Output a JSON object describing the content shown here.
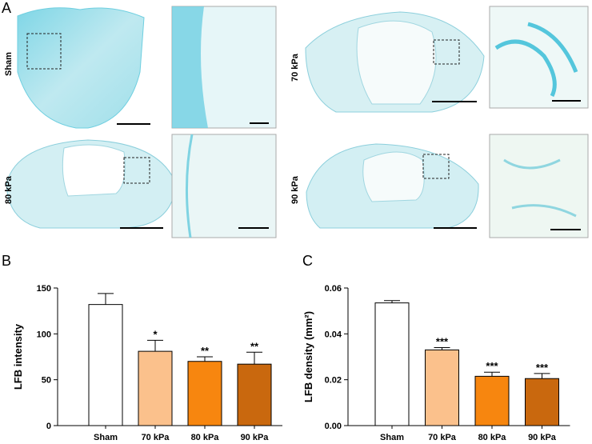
{
  "panel_labels": [
    "A",
    "B",
    "C"
  ],
  "images": [
    {
      "label": "Sham"
    },
    {
      "label": "70 kPa"
    },
    {
      "label": "80 kPa"
    },
    {
      "label": "90 kPa"
    }
  ],
  "chart_data": [
    {
      "type": "bar",
      "ylabel": "LFB intensity",
      "categories": [
        "Sham",
        "70 kPa",
        "80 kPa",
        "90 kPa"
      ],
      "values": [
        132,
        81,
        70,
        67
      ],
      "errors": [
        12,
        12,
        5,
        13
      ],
      "annotations": [
        null,
        "*",
        "**",
        "**"
      ],
      "colors": [
        "#ffffff",
        "#fbc18c",
        "#f7860f",
        "#c9680e"
      ],
      "ylim": [
        0,
        150
      ],
      "yticks": [
        0,
        50,
        100,
        150
      ]
    },
    {
      "type": "bar",
      "ylabel": "LFB density (mm²)",
      "categories": [
        "Sham",
        "70 kPa",
        "80 kPa",
        "90 kPa"
      ],
      "values": [
        0.0535,
        0.033,
        0.0215,
        0.0205
      ],
      "errors": [
        0.001,
        0.001,
        0.0018,
        0.0022
      ],
      "annotations": [
        null,
        "***",
        "***",
        "***"
      ],
      "colors": [
        "#ffffff",
        "#fbc18c",
        "#f7860f",
        "#c9680e"
      ],
      "ylim": [
        0,
        0.06
      ],
      "yticks": [
        {
          "value": 0,
          "label": "0.00"
        },
        0.02,
        0.04,
        0.06
      ]
    }
  ]
}
